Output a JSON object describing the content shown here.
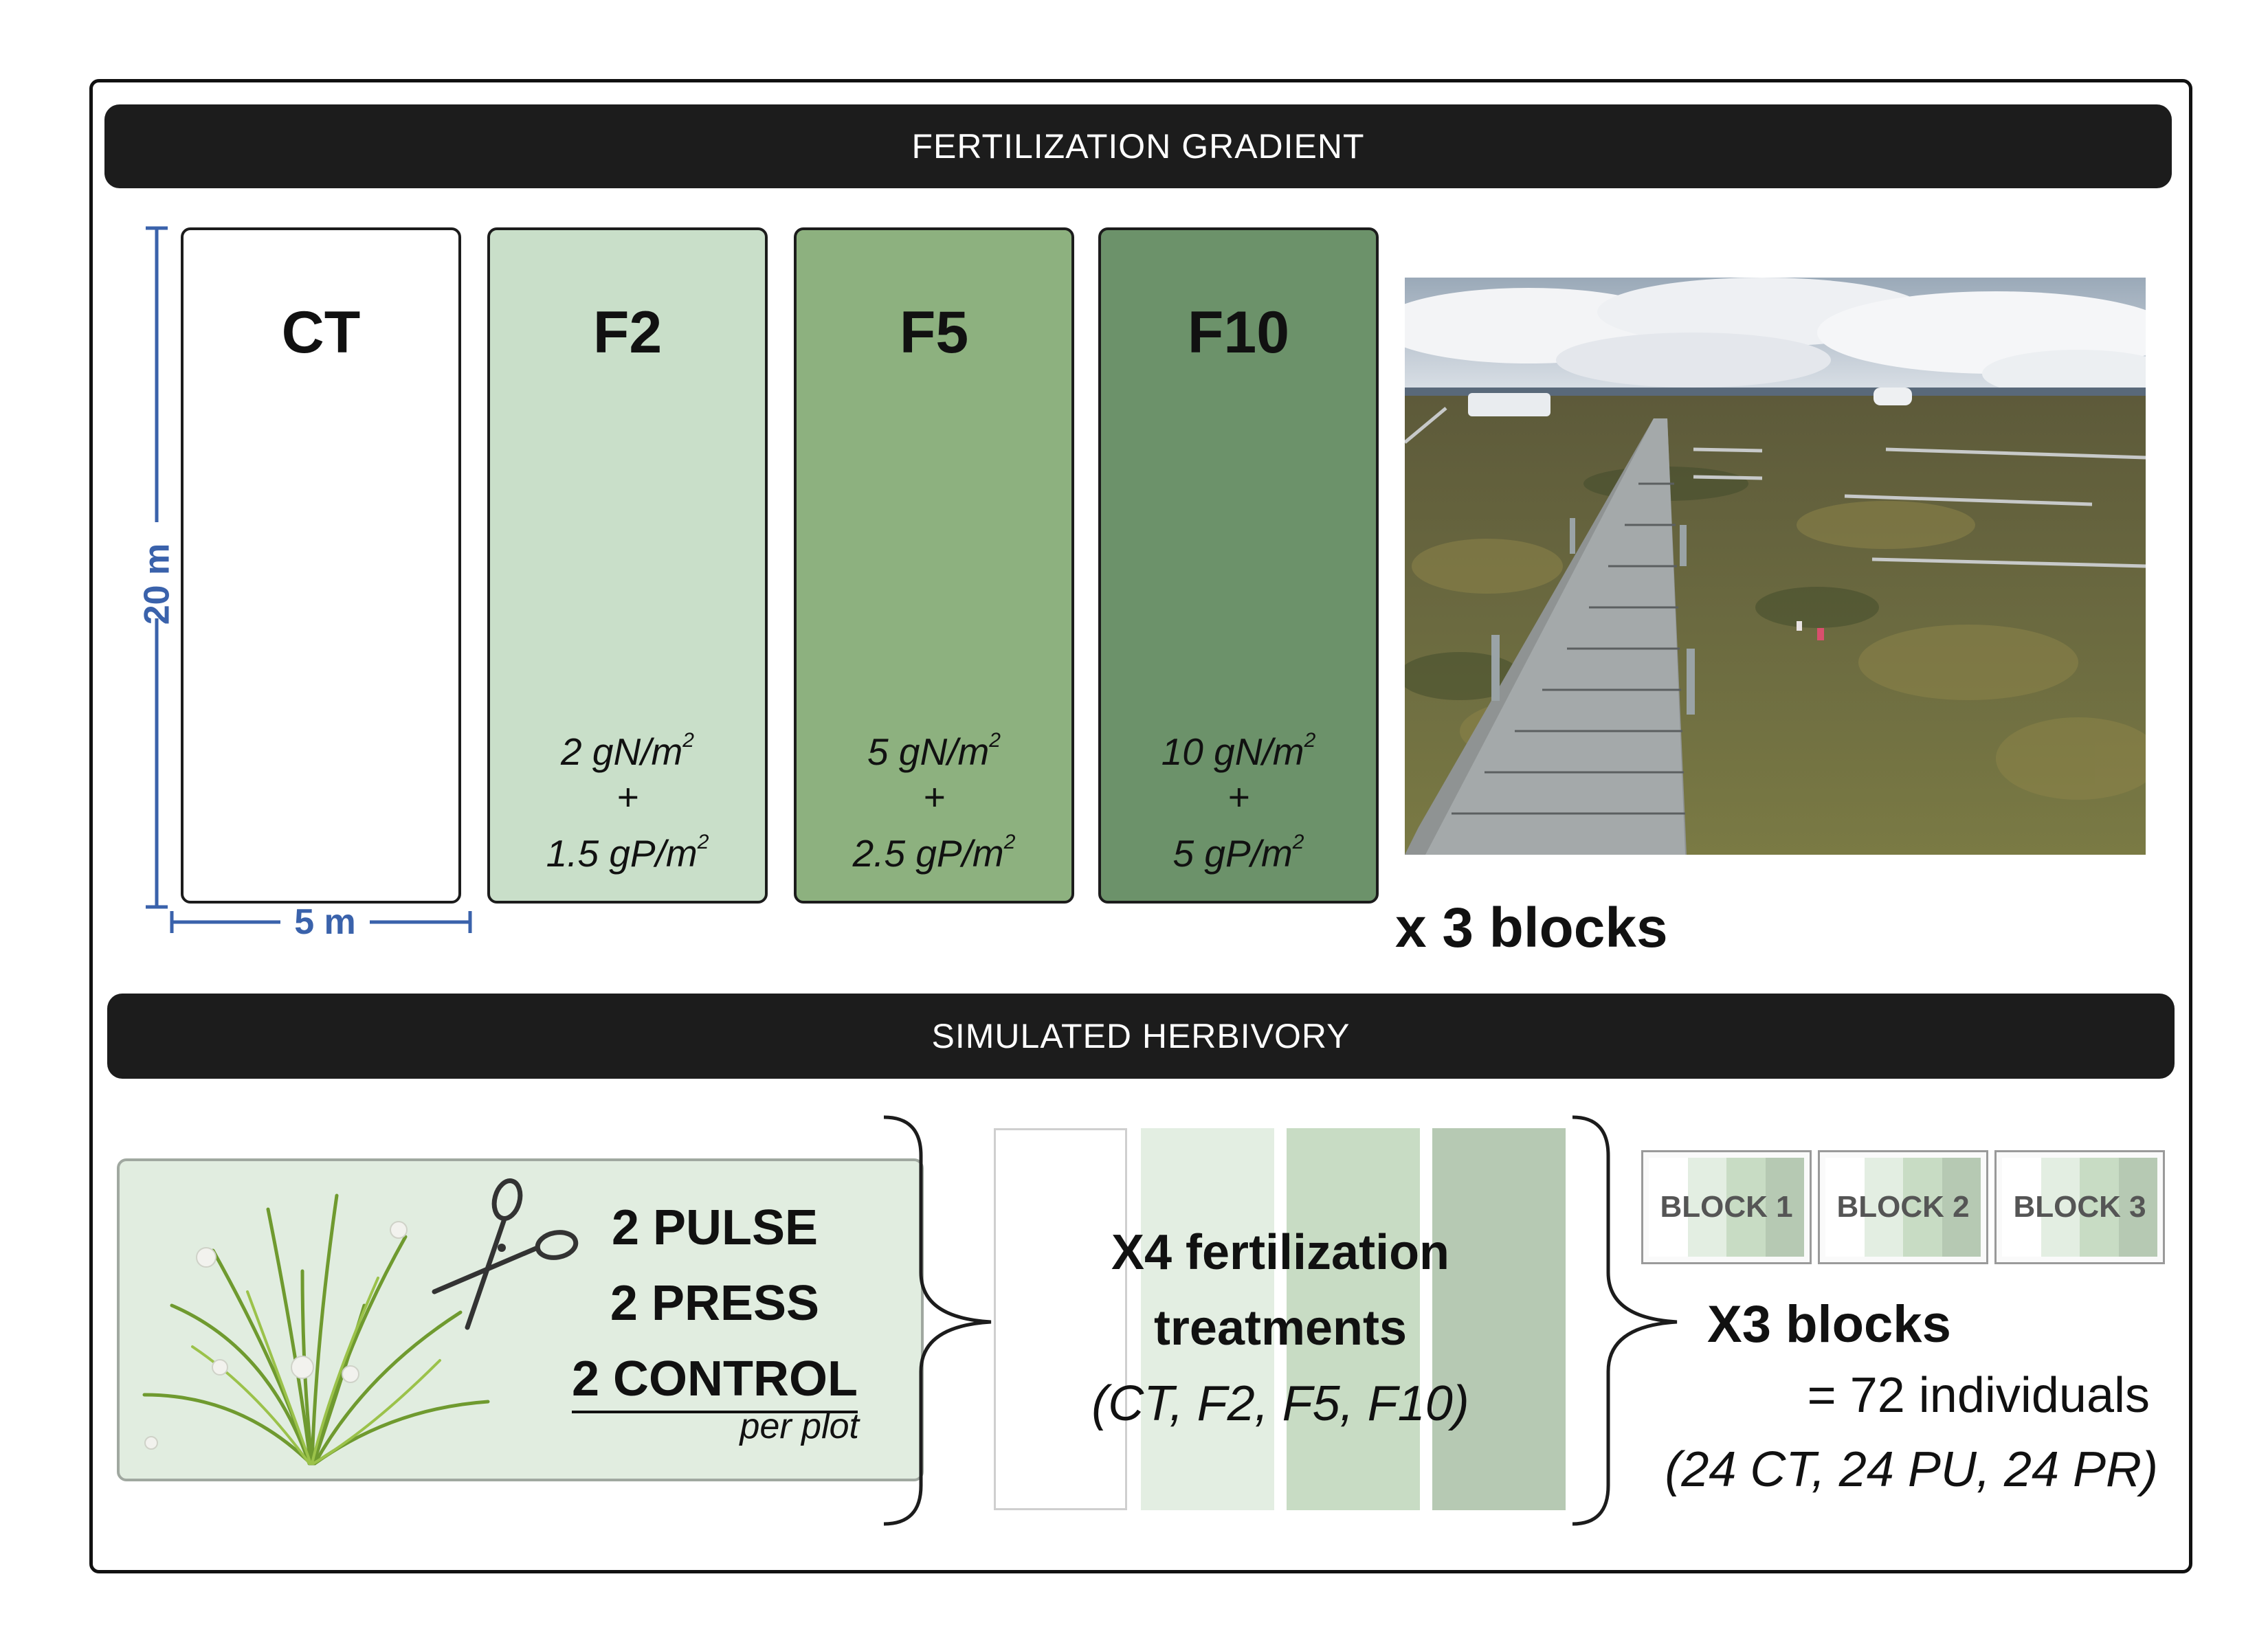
{
  "banners": {
    "top": "FERTILIZATION GRADIENT",
    "middle": "SIMULATED HERBIVORY"
  },
  "dimensions": {
    "height": "20 m",
    "width": "5 m"
  },
  "plots": [
    {
      "id": "CT",
      "rate": [
        "",
        "",
        ""
      ],
      "fill": "#ffffff"
    },
    {
      "id": "F2",
      "rate": [
        "2 gN/m",
        "+",
        "1.5 gP/m"
      ],
      "fill": "#c9dfc9"
    },
    {
      "id": "F5",
      "rate": [
        "5 gN/m",
        "+",
        "2.5 gP/m"
      ],
      "fill": "#8db17f"
    },
    {
      "id": "F10",
      "rate": [
        "10 gN/m",
        "+",
        "5 gP/m"
      ],
      "fill": "#6c926a"
    }
  ],
  "blocks_caption": "x 3 blocks",
  "herbivory": {
    "lines": [
      "2 PULSE",
      "2 PRESS",
      "2 CONTROL"
    ],
    "per_plot": "per plot"
  },
  "fertilization_treatments": {
    "line1": "X4 fertilization",
    "line2": "treatments",
    "line3": "(CT, F2, F5, F10)"
  },
  "block_labels": [
    "BLOCK 1",
    "BLOCK 2",
    "BLOCK 3"
  ],
  "totals": {
    "blocks": "X3 blocks",
    "individuals": "= 72 individuals",
    "breakdown": "(24 CT, 24 PU, 24 PR)"
  },
  "colors": {
    "banner": "#1c1c1c",
    "dimension": "#3a62ab",
    "ct": "#ffffff",
    "f2": "#c9dfc9",
    "f5": "#8db17f",
    "f10": "#6c926a",
    "herbivory_box": "#e1ede0"
  },
  "icons": [
    "scissors-icon",
    "sedge-plant-icon",
    "boardwalk-photo",
    "curly-brace-icon"
  ]
}
